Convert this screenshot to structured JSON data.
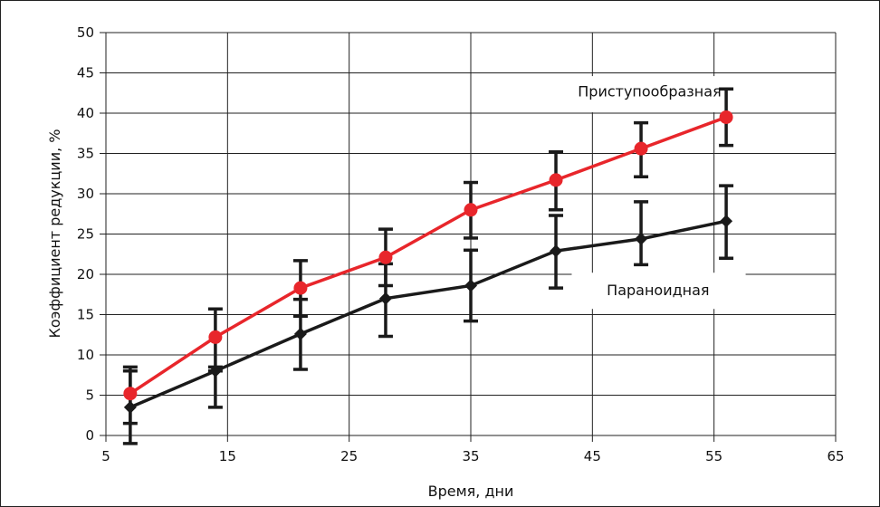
{
  "chart_data": {
    "type": "line",
    "title": "",
    "xlabel": "Время, дни",
    "ylabel": "Коэффициент редукции, %",
    "xlim": [
      5,
      65
    ],
    "ylim": [
      0,
      50
    ],
    "x_ticks": [
      "5",
      "15",
      "25",
      "35",
      "45",
      "55",
      "65"
    ],
    "y_ticks": [
      "0",
      "5",
      "10",
      "15",
      "20",
      "25",
      "30",
      "35",
      "40",
      "45",
      "50"
    ],
    "grid": true,
    "legend": "none",
    "x": [
      7,
      14,
      21,
      28,
      35,
      42,
      49,
      56
    ],
    "series": [
      {
        "name": "Приступообразная",
        "color": "#e8262b",
        "marker": "circle",
        "values": [
          5.2,
          12.2,
          18.3,
          22.1,
          28.0,
          31.7,
          35.6,
          39.5
        ],
        "err_low": [
          1.5,
          8.0,
          14.8,
          18.6,
          24.5,
          28.0,
          32.1,
          36.0
        ],
        "err_high": [
          8.0,
          15.7,
          21.7,
          25.6,
          31.4,
          35.2,
          38.8,
          43.0
        ]
      },
      {
        "name": "Параноидная",
        "color": "#1a1a1a",
        "marker": "diamond",
        "values": [
          3.5,
          8.0,
          12.6,
          17.0,
          18.6,
          22.9,
          24.4,
          26.6
        ],
        "err_low": [
          -1.0,
          3.5,
          8.2,
          12.3,
          14.2,
          18.3,
          21.2,
          22.0
        ],
        "err_high": [
          8.5,
          8.5,
          16.9,
          21.3,
          23.0,
          27.3,
          29.0,
          31.0
        ]
      }
    ]
  }
}
